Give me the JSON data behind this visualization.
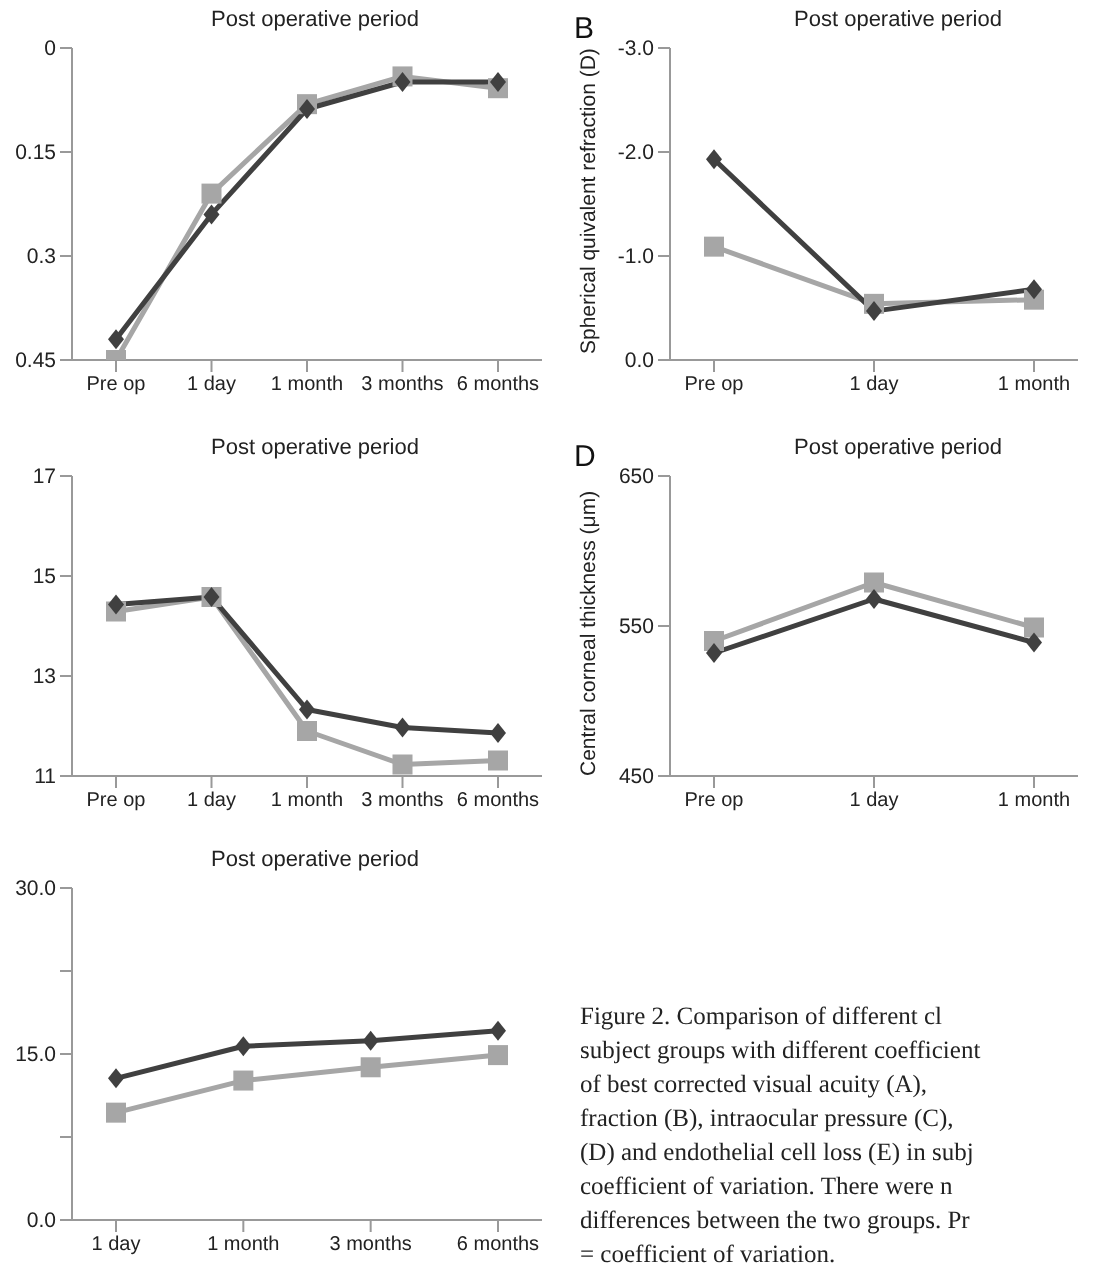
{
  "chart_data": [
    {
      "type": "line",
      "title": "Post operative period",
      "categories": [
        "Pre op",
        "1 day",
        "1 month",
        "3 months",
        "6 months"
      ],
      "ylim": [
        0.45,
        0
      ],
      "yticks": [
        0,
        0.15,
        0.3,
        0.45
      ],
      "grid": false,
      "legend": false,
      "series": [
        {
          "color": "#404040",
          "marker": "diamond",
          "values": [
            0.42,
            0.24,
            0.088,
            0.049,
            0.049
          ]
        },
        {
          "color": "#a6a6a6",
          "marker": "square",
          "values": [
            0.45,
            0.21,
            0.081,
            0.041,
            0.058
          ]
        }
      ]
    },
    {
      "type": "line",
      "title": "Post operative period",
      "ylabel": "Spherical quivalent refraction (D)",
      "annotations": [
        "B"
      ],
      "categories": [
        "Pre op",
        "1 day",
        "1 month"
      ],
      "ylim": [
        0,
        -3
      ],
      "yticks": [
        {
          "value": 0,
          "label": "0.0"
        },
        {
          "value": -1,
          "label": "-1.0"
        },
        {
          "value": -2,
          "label": "-2.0"
        },
        {
          "value": -3,
          "label": "-3.0"
        }
      ],
      "grid": false,
      "legend": false,
      "series": [
        {
          "color": "#404040",
          "marker": "diamond",
          "values": [
            -1.93,
            -0.47,
            -0.68
          ]
        },
        {
          "color": "#a6a6a6",
          "marker": "square",
          "values": [
            -1.09,
            -0.54,
            -0.58
          ]
        }
      ]
    },
    {
      "type": "line",
      "title": "Post operative period",
      "categories": [
        "Pre op",
        "1 day",
        "1 month",
        "3 months",
        "6 months"
      ],
      "ylim": [
        11,
        17
      ],
      "yticks": [
        11,
        13,
        15,
        17
      ],
      "grid": false,
      "legend": false,
      "series": [
        {
          "color": "#404040",
          "marker": "diamond",
          "values": [
            14.43,
            14.58,
            12.33,
            11.97,
            11.86
          ]
        },
        {
          "color": "#a6a6a6",
          "marker": "square",
          "values": [
            14.29,
            14.58,
            11.9,
            11.23,
            11.31
          ]
        }
      ]
    },
    {
      "type": "line",
      "title": "Post operative period",
      "ylabel": "Central corneal thickness (μm)",
      "annotations": [
        "D"
      ],
      "categories": [
        "Pre op",
        "1 day",
        "1 month"
      ],
      "ylim": [
        450,
        650
      ],
      "yticks": [
        450,
        550,
        650
      ],
      "grid": false,
      "legend": false,
      "series": [
        {
          "color": "#404040",
          "marker": "diamond",
          "values": [
            532,
            568,
            539
          ]
        },
        {
          "color": "#a6a6a6",
          "marker": "square",
          "values": [
            540,
            579,
            549
          ]
        }
      ]
    },
    {
      "type": "line",
      "title": "Post operative period",
      "categories": [
        "1 day",
        "1 month",
        "3 months",
        "6 months"
      ],
      "ylim": [
        0,
        30
      ],
      "yticks": [
        {
          "value": 0,
          "label": "0.0"
        },
        {
          "value": 7.5,
          "label": null
        },
        {
          "value": 15,
          "label": "15.0"
        },
        {
          "value": 22.5,
          "label": null
        },
        {
          "value": 30,
          "label": "30.0"
        }
      ],
      "grid": false,
      "legend": false,
      "series": [
        {
          "color": "#404040",
          "marker": "diamond",
          "values": [
            12.8,
            15.7,
            16.2,
            17.1
          ]
        },
        {
          "color": "#a6a6a6",
          "marker": "square",
          "values": [
            9.7,
            12.6,
            13.8,
            14.9
          ]
        }
      ]
    },
    {
      "type": "other",
      "annotations": [
        "Figure 2. Comparison of different cl",
        "subject groups with different coefficient",
        "of best corrected visual acuity (A),",
        "fraction (B), intraocular pressure (C),",
        "(D) and endothelial cell loss (E) in subj",
        "coefficient of variation. There were n",
        "differences between the two groups. Pr",
        "= coefficient of variation."
      ]
    }
  ]
}
